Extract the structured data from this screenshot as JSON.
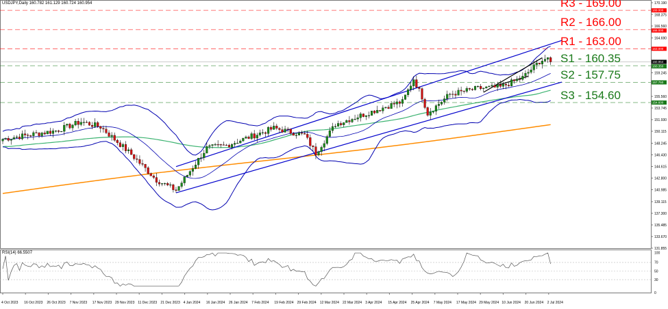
{
  "header": {
    "symbol": "USDJPY,Daily",
    "ohlc": "160.782 161.129 160.724 160.954"
  },
  "rsi_header": "RSI(14) 66.5507",
  "chart_data": {
    "type": "candlestick",
    "title": "USDJPY,Daily",
    "ylim": [
      131.855,
      170.19
    ],
    "y_ticks": [
      "170.190",
      "168.375",
      "166.560",
      "164.690",
      "159.245",
      "155.560",
      "153.745",
      "151.930",
      "150.115",
      "148.245",
      "146.430",
      "144.615",
      "142.800",
      "140.985",
      "139.115",
      "137.300",
      "135.485",
      "133.670",
      "131.855"
    ],
    "x_ticks": [
      "4 Oct 2023",
      "16 Oct 2023",
      "26 Oct 2023",
      "7 Nov 2023",
      "17 Nov 2023",
      "29 Nov 2023",
      "11 Dec 2023",
      "21 Dec 2023",
      "4 Jan 2024",
      "16 Jan 2024",
      "26 Jan 2024",
      "7 Feb 2024",
      "19 Feb 2024",
      "29 Feb 2024",
      "12 Mar 2024",
      "22 Mar 2024",
      "3 Apr 2024",
      "15 Apr 2024",
      "25 Apr 2024",
      "7 May 2024",
      "17 May 2024",
      "29 May 2024",
      "10 Jun 2024",
      "20 Jun 2024",
      "2 Jul 2024"
    ],
    "close_path": [
      [
        0,
        148.9
      ],
      [
        19,
        150.2
      ],
      [
        28,
        151.6
      ],
      [
        35,
        150.8
      ],
      [
        46,
        146.5
      ],
      [
        55,
        142.5
      ],
      [
        62,
        140.9
      ],
      [
        73,
        147.5
      ],
      [
        80,
        147.9
      ],
      [
        97,
        150.6
      ],
      [
        108,
        149.5
      ],
      [
        112,
        146.7
      ],
      [
        119,
        151.2
      ],
      [
        140,
        154.4
      ],
      [
        143,
        154.7
      ],
      [
        147,
        158.3
      ],
      [
        150,
        155.5
      ],
      [
        152,
        152.9
      ],
      [
        160,
        155.9
      ],
      [
        170,
        156.8
      ],
      [
        178,
        157.0
      ],
      [
        186,
        158.5
      ],
      [
        192,
        161.0
      ],
      [
        194,
        161.4
      ],
      [
        196,
        160.95
      ]
    ],
    "current_price": {
      "value": 160.954,
      "label": "160.954"
    },
    "levels": [
      {
        "name": "R3",
        "value": 169.0,
        "label": "R3 - 169.00",
        "tag": "169.000",
        "color": "#ff0000"
      },
      {
        "name": "R2",
        "value": 166.0,
        "label": "R2 - 166.00",
        "tag": "166.000",
        "color": "#ff0000"
      },
      {
        "name": "R1",
        "value": 163.0,
        "label": "R1 - 163.00",
        "tag": "163.000",
        "color": "#ff0000"
      },
      {
        "name": "S1",
        "value": 160.35,
        "label": "S1 - 160.35",
        "tag": "160.350",
        "color": "#1a7a1a"
      },
      {
        "name": "S2",
        "value": 157.75,
        "label": "S2 - 157.75",
        "tag": "157.750",
        "color": "#1a7a1a"
      },
      {
        "name": "S3",
        "value": 154.6,
        "label": "S3 - 154.60",
        "tag": "154.600",
        "color": "#1a7a1a"
      }
    ],
    "channel": {
      "upper": [
        [
          62,
          144.6
        ],
        [
          200,
          164.3
        ]
      ],
      "lower": [
        [
          62,
          140.5
        ],
        [
          200,
          157.8
        ]
      ]
    },
    "rsi": {
      "ylim": [
        0,
        100
      ],
      "ticks": [
        "100",
        "70",
        "50",
        "30",
        "0"
      ],
      "levels": [
        70,
        50,
        30
      ],
      "last": 66.5507
    },
    "colors": {
      "bull": "#1a8a1a",
      "bear": "#d01010",
      "bands": "#0000b0",
      "ma_green": "#3cb371",
      "ma_orange": "#ff8c00"
    }
  }
}
